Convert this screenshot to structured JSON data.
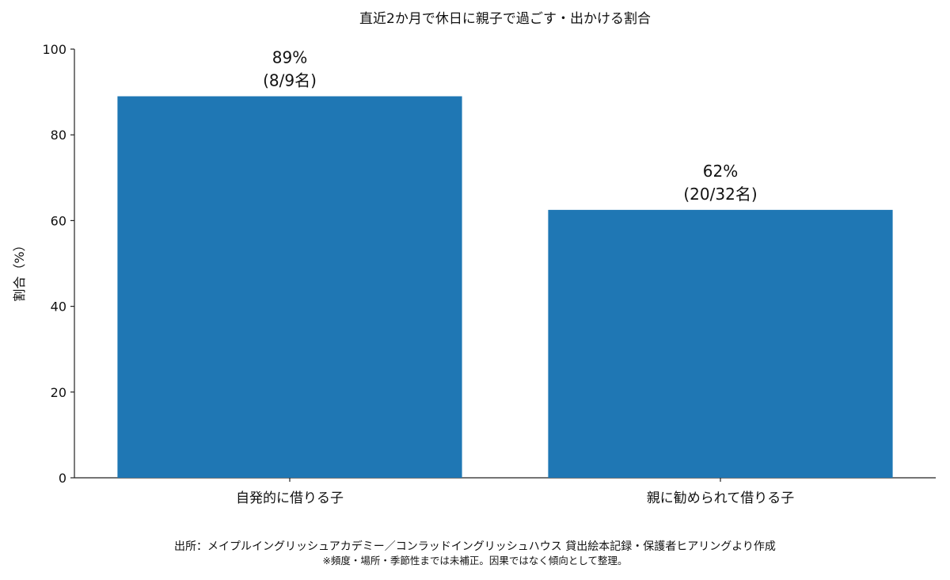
{
  "chart_data": {
    "type": "bar",
    "title": "直近2か月で休日に親子で過ごす・出かける割合",
    "xlabel": "",
    "ylabel": "割合（%）",
    "ylim": [
      0,
      100
    ],
    "yticks": [
      0,
      20,
      40,
      60,
      80,
      100
    ],
    "grid": false,
    "categories": [
      "自発的に借りる子",
      "親に勧められて借りる子"
    ],
    "values": [
      89,
      62.5
    ],
    "value_labels": [
      "89%",
      "62%"
    ],
    "count_labels": [
      "(8/9名)",
      "(20/32名)"
    ],
    "bar_color": "#1f77b4"
  },
  "footer": {
    "source": "出所：メイプルイングリッシュアカデミー／コンラッドイングリッシュハウス 貸出絵本記録・保護者ヒアリングより作成",
    "note": "※頻度・場所・季節性までは未補正。因果ではなく傾向として整理。"
  }
}
